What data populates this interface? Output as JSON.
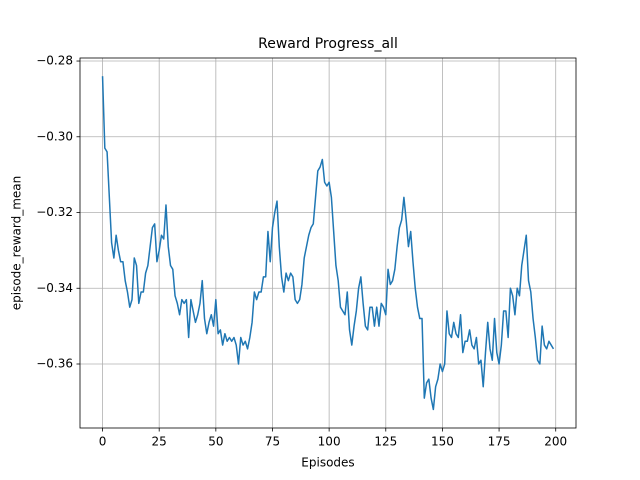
{
  "chart_data": {
    "type": "line",
    "title": "Reward Progress_all",
    "xlabel": "Episodes",
    "ylabel": "episode_reward_mean",
    "color": "#1f77b4",
    "grid": true,
    "xlim": [
      -9.95,
      208.95
    ],
    "ylim": [
      -0.3769,
      -0.2792
    ],
    "xticks": [
      0,
      25,
      50,
      75,
      100,
      125,
      150,
      175,
      200
    ],
    "yticks": [
      {
        "value": -0.28,
        "label": "−0.28"
      },
      {
        "value": -0.3,
        "label": "−0.30"
      },
      {
        "value": -0.32,
        "label": "−0.32"
      },
      {
        "value": -0.34,
        "label": "−0.34"
      },
      {
        "value": -0.36,
        "label": "−0.36"
      }
    ],
    "x": [
      0,
      1,
      2,
      3,
      4,
      5,
      6,
      7,
      8,
      9,
      10,
      11,
      12,
      13,
      14,
      15,
      16,
      17,
      18,
      19,
      20,
      21,
      22,
      23,
      24,
      25,
      26,
      27,
      28,
      29,
      30,
      31,
      32,
      33,
      34,
      35,
      36,
      37,
      38,
      39,
      40,
      41,
      42,
      43,
      44,
      45,
      46,
      47,
      48,
      49,
      50,
      51,
      52,
      53,
      54,
      55,
      56,
      57,
      58,
      59,
      60,
      61,
      62,
      63,
      64,
      65,
      66,
      67,
      68,
      69,
      70,
      71,
      72,
      73,
      74,
      75,
      76,
      77,
      78,
      79,
      80,
      81,
      82,
      83,
      84,
      85,
      86,
      87,
      88,
      89,
      90,
      91,
      92,
      93,
      94,
      95,
      96,
      97,
      98,
      99,
      100,
      101,
      102,
      103,
      104,
      105,
      106,
      107,
      108,
      109,
      110,
      111,
      112,
      113,
      114,
      115,
      116,
      117,
      118,
      119,
      120,
      121,
      122,
      123,
      124,
      125,
      126,
      127,
      128,
      129,
      130,
      131,
      132,
      133,
      134,
      135,
      136,
      137,
      138,
      139,
      140,
      141,
      142,
      143,
      144,
      145,
      146,
      147,
      148,
      149,
      150,
      151,
      152,
      153,
      154,
      155,
      156,
      157,
      158,
      159,
      160,
      161,
      162,
      163,
      164,
      165,
      166,
      167,
      168,
      169,
      170,
      171,
      172,
      173,
      174,
      175,
      176,
      177,
      178,
      179,
      180,
      181,
      182,
      183,
      184,
      185,
      186,
      187,
      188,
      189,
      190,
      191,
      192,
      193,
      194,
      195,
      196,
      197,
      198,
      199
    ],
    "values": [
      -0.284,
      -0.303,
      -0.304,
      -0.316,
      -0.328,
      -0.332,
      -0.326,
      -0.33,
      -0.333,
      -0.333,
      -0.338,
      -0.341,
      -0.345,
      -0.343,
      -0.332,
      -0.334,
      -0.344,
      -0.341,
      -0.341,
      -0.336,
      -0.334,
      -0.329,
      -0.324,
      -0.323,
      -0.333,
      -0.33,
      -0.326,
      -0.327,
      -0.318,
      -0.329,
      -0.334,
      -0.335,
      -0.342,
      -0.344,
      -0.347,
      -0.343,
      -0.344,
      -0.343,
      -0.353,
      -0.343,
      -0.346,
      -0.349,
      -0.347,
      -0.344,
      -0.338,
      -0.348,
      -0.352,
      -0.349,
      -0.347,
      -0.35,
      -0.343,
      -0.352,
      -0.351,
      -0.355,
      -0.352,
      -0.354,
      -0.353,
      -0.354,
      -0.353,
      -0.355,
      -0.36,
      -0.353,
      -0.355,
      -0.354,
      -0.356,
      -0.353,
      -0.349,
      -0.341,
      -0.343,
      -0.341,
      -0.341,
      -0.337,
      -0.337,
      -0.325,
      -0.333,
      -0.324,
      -0.32,
      -0.317,
      -0.329,
      -0.337,
      -0.341,
      -0.336,
      -0.338,
      -0.336,
      -0.337,
      -0.343,
      -0.344,
      -0.343,
      -0.339,
      -0.332,
      -0.329,
      -0.326,
      -0.324,
      -0.323,
      -0.316,
      -0.309,
      -0.308,
      -0.306,
      -0.312,
      -0.313,
      -0.312,
      -0.316,
      -0.325,
      -0.334,
      -0.338,
      -0.345,
      -0.346,
      -0.347,
      -0.341,
      -0.351,
      -0.355,
      -0.35,
      -0.346,
      -0.34,
      -0.337,
      -0.344,
      -0.35,
      -0.351,
      -0.345,
      -0.345,
      -0.35,
      -0.345,
      -0.35,
      -0.344,
      -0.345,
      -0.347,
      -0.335,
      -0.339,
      -0.338,
      -0.335,
      -0.329,
      -0.324,
      -0.322,
      -0.316,
      -0.322,
      -0.329,
      -0.325,
      -0.333,
      -0.34,
      -0.345,
      -0.348,
      -0.348,
      -0.369,
      -0.365,
      -0.364,
      -0.369,
      -0.372,
      -0.366,
      -0.364,
      -0.36,
      -0.362,
      -0.36,
      -0.346,
      -0.352,
      -0.353,
      -0.349,
      -0.352,
      -0.353,
      -0.347,
      -0.357,
      -0.354,
      -0.354,
      -0.351,
      -0.355,
      -0.356,
      -0.353,
      -0.36,
      -0.359,
      -0.366,
      -0.357,
      -0.349,
      -0.356,
      -0.359,
      -0.348,
      -0.357,
      -0.36,
      -0.355,
      -0.346,
      -0.346,
      -0.353,
      -0.34,
      -0.342,
      -0.347,
      -0.34,
      -0.342,
      -0.334,
      -0.33,
      -0.326,
      -0.338,
      -0.341,
      -0.348,
      -0.353,
      -0.359,
      -0.36,
      -0.35,
      -0.355,
      -0.356,
      -0.354,
      -0.355,
      -0.356
    ]
  }
}
